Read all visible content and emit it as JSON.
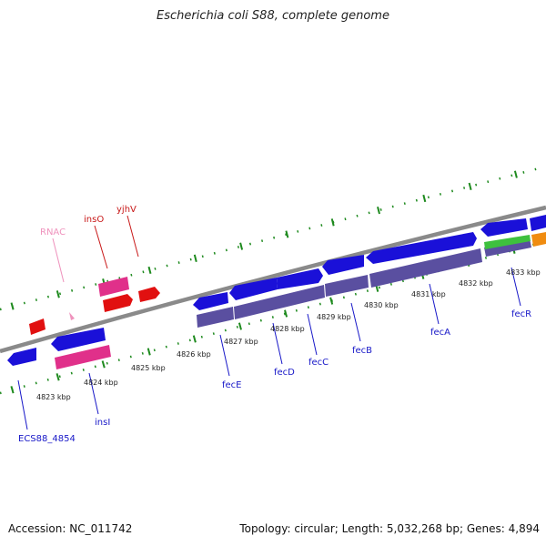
{
  "title": "Escherichia coli S88, complete genome",
  "footer": {
    "accession": "Accession: NC_011742",
    "summary": "Topology: circular; Length: 5,032,268 bp; Genes: 4,894"
  },
  "colors": {
    "cds": "#1a10d8",
    "rna": "#e11010",
    "repeat": "#e0308a",
    "feature_purple": "#5a4fa0",
    "green": "#3ec03e",
    "orange": "#f08c10",
    "label_blue": "#1818c8",
    "label_red": "#c81818",
    "label_pink": "#ef93bd",
    "tick_green": "#1e8a1e",
    "backbone": "#808080"
  },
  "ticks": [
    "4823 kbp",
    "4824 kbp",
    "4825 kbp",
    "4826 kbp",
    "4827 kbp",
    "4828 kbp",
    "4829 kbp",
    "4830 kbp",
    "4831 kbp",
    "4832 kbp",
    "4833 kbp"
  ],
  "genes": [
    "ECS88_4854",
    "insI",
    "fecE",
    "fecD",
    "fecC",
    "fecB",
    "fecA",
    "fecR",
    "insO",
    "yjhV",
    "RNAC"
  ]
}
